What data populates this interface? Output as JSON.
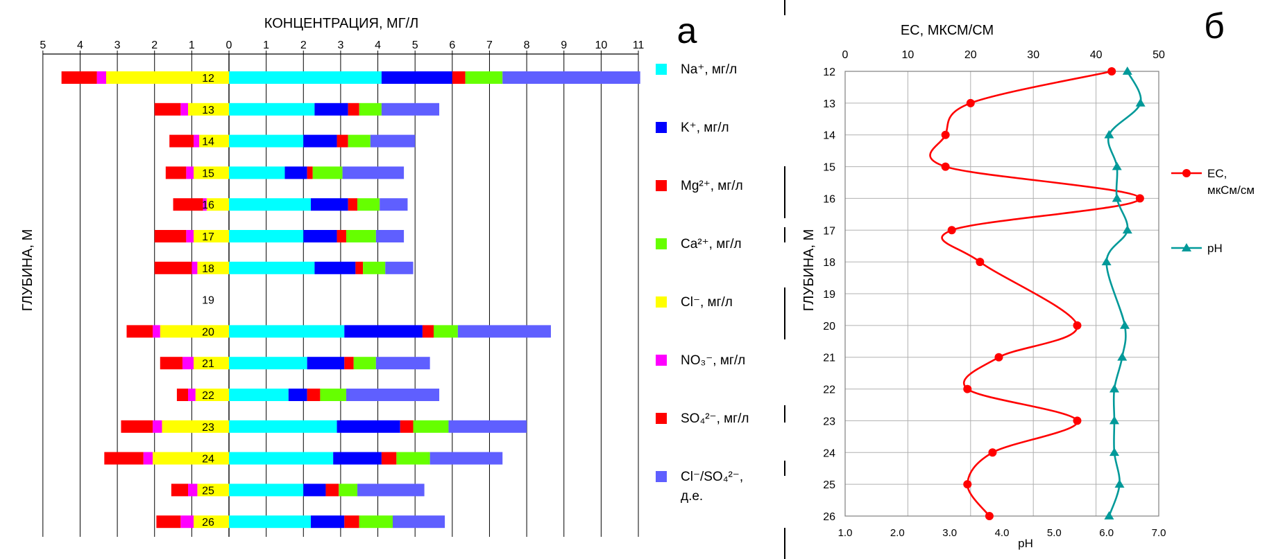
{
  "chart_data": [
    {
      "type": "bar",
      "panel_letter": "а",
      "title": "КОНЦЕНТРАЦИЯ, МГ/Л",
      "ylabel": "ГЛУБИНА, М",
      "x_left_ticks": [
        "5",
        "4",
        "3",
        "2",
        "1"
      ],
      "x_right_ticks": [
        "0",
        "1",
        "2",
        "3",
        "4",
        "5",
        "6",
        "7",
        "8",
        "9",
        "10",
        "11"
      ],
      "left_xlim": [
        0,
        5
      ],
      "right_xlim": [
        0,
        11
      ],
      "grid": "vertical",
      "legend_position": "right",
      "depths": [
        "12",
        "13",
        "14",
        "15",
        "16",
        "17",
        "18",
        "19",
        "20",
        "21",
        "22",
        "23",
        "24",
        "25",
        "26"
      ],
      "right_series": [
        {
          "name": "Na⁺, мг/л",
          "color": "#00FFFF",
          "values": [
            4.1,
            2.3,
            2.0,
            1.5,
            2.2,
            2.0,
            2.3,
            0,
            3.1,
            2.1,
            1.6,
            2.9,
            2.8,
            2.0,
            2.2
          ]
        },
        {
          "name": "K⁺, мг/л",
          "color": "#0000FF",
          "values": [
            1.9,
            0.9,
            0.9,
            0.6,
            1.0,
            0.9,
            1.1,
            0,
            2.1,
            1.0,
            0.5,
            1.7,
            1.3,
            0.6,
            0.9
          ]
        },
        {
          "name": "Mg²⁺, мг/л",
          "color": "#FF0000",
          "values": [
            0.35,
            0.3,
            0.3,
            0.15,
            0.25,
            0.25,
            0.2,
            0,
            0.3,
            0.25,
            0.35,
            0.35,
            0.4,
            0.35,
            0.4
          ]
        },
        {
          "name": "Ca²⁺, мг/л",
          "color": "#66FF00",
          "values": [
            1.0,
            0.6,
            0.6,
            0.8,
            0.6,
            0.8,
            0.6,
            0,
            0.65,
            0.6,
            0.7,
            0.95,
            0.9,
            0.5,
            0.9
          ]
        },
        {
          "name": "Cl⁻/SO₄²⁻, д.е.",
          "color": "#5F5FFF",
          "values": [
            3.7,
            1.55,
            1.2,
            1.65,
            0.75,
            0.75,
            0.75,
            0,
            2.5,
            1.45,
            2.5,
            2.1,
            1.95,
            1.8,
            1.4
          ]
        }
      ],
      "left_series": [
        {
          "name": "Cl⁻, мг/л",
          "color": "#FFFF00",
          "values": [
            3.3,
            1.1,
            0.8,
            0.95,
            0.6,
            0.95,
            0.85,
            0,
            1.85,
            0.95,
            0.9,
            1.8,
            2.05,
            0.85,
            0.95
          ]
        },
        {
          "name": "NO₃⁻, мг/л",
          "color": "#FF00FF",
          "values": [
            0.25,
            0.2,
            0.15,
            0.2,
            0.1,
            0.2,
            0.15,
            0,
            0.2,
            0.3,
            0.2,
            0.25,
            0.25,
            0.25,
            0.35
          ]
        },
        {
          "name": "SO₄²⁻, мг/л",
          "color": "#FF0000",
          "values": [
            0.95,
            0.7,
            0.65,
            0.55,
            0.8,
            0.85,
            1.0,
            0,
            0.7,
            0.6,
            0.3,
            0.85,
            1.05,
            0.45,
            0.65
          ]
        }
      ],
      "legend": [
        {
          "label": "Na⁺, мг/л",
          "color": "#00FFFF"
        },
        {
          "label": "K⁺, мг/л",
          "color": "#0000FF"
        },
        {
          "label": "Mg²⁺, мг/л",
          "color": "#FF0000"
        },
        {
          "label": "Ca²⁺, мг/л",
          "color": "#66FF00"
        },
        {
          "label": "Cl⁻, мг/л",
          "color": "#FFFF00"
        },
        {
          "label": "NO₃⁻, мг/л",
          "color": "#FF00FF"
        },
        {
          "label": "SO₄²⁻, мг/л",
          "color": "#FF0000"
        },
        {
          "label": "Cl⁻/SO₄²⁻, д.е.",
          "color": "#5F5FFF"
        }
      ]
    },
    {
      "type": "line",
      "panel_letter": "б",
      "title": "EC, МКСМ/СМ",
      "ylabel": "ГЛУБИНА, М",
      "xlabel_bottom": "pH",
      "y_ticks": [
        "12",
        "13",
        "14",
        "15",
        "16",
        "17",
        "18",
        "19",
        "20",
        "21",
        "22",
        "23",
        "24",
        "25",
        "26"
      ],
      "top_ticks": [
        "0",
        "10",
        "20",
        "30",
        "40",
        "50"
      ],
      "bottom_ticks": [
        "1.0",
        "2.0",
        "3.0",
        "4.0",
        "5.0",
        "6.0",
        "7.0"
      ],
      "top_xlim": [
        0,
        50
      ],
      "bottom_xlim": [
        1,
        7
      ],
      "ylim": [
        12,
        26
      ],
      "y_inverted": true,
      "grid": true,
      "legend_position": "right",
      "series": [
        {
          "name": "EC, мкСм/см",
          "axis": "top",
          "color": "#FF0000",
          "marker": "circle",
          "x": [
            42.5,
            20,
            16,
            16,
            47,
            17,
            21.5,
            37,
            24.5,
            19.5,
            37,
            23.5,
            19.5,
            23
          ],
          "y": [
            12,
            13,
            14,
            15,
            16,
            17,
            18,
            20,
            21,
            22,
            23,
            24,
            25,
            26
          ]
        },
        {
          "name": "pH",
          "axis": "bottom",
          "color": "#009999",
          "marker": "triangle",
          "x": [
            6.4,
            6.65,
            6.05,
            6.2,
            6.2,
            6.4,
            6.0,
            6.35,
            6.3,
            6.15,
            6.15,
            6.15,
            6.25,
            6.05
          ],
          "y": [
            12,
            13,
            14,
            15,
            16,
            17,
            18,
            20,
            21,
            22,
            23,
            24,
            25,
            26
          ]
        }
      ],
      "legend": [
        {
          "label_line1": "EC,",
          "label_line2": "мкСм/см",
          "color": "#FF0000",
          "marker": "circle"
        },
        {
          "label_line1": "pH",
          "label_line2": "",
          "color": "#009999",
          "marker": "triangle"
        }
      ]
    }
  ]
}
